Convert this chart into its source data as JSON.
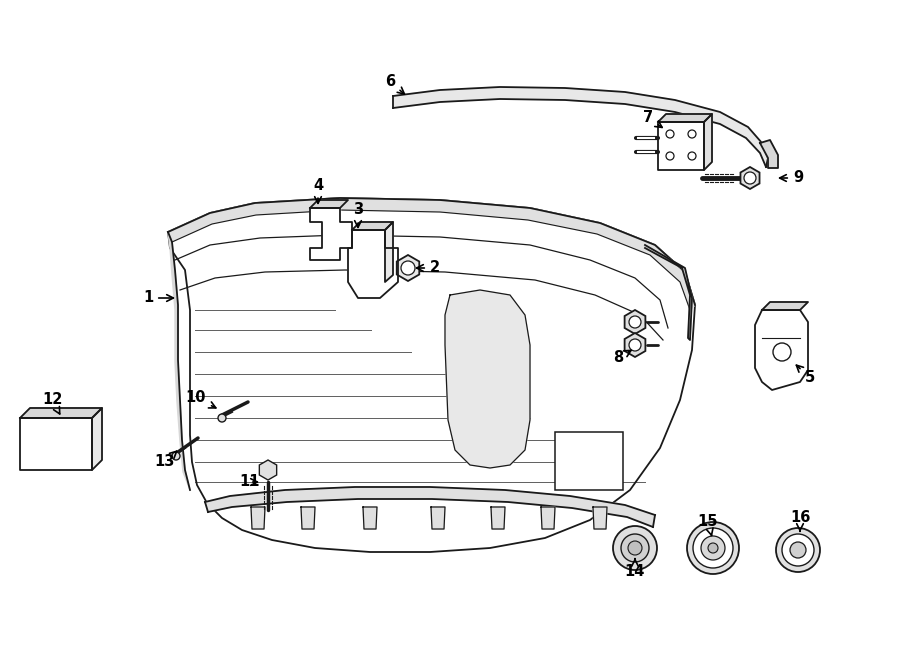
{
  "background_color": "#ffffff",
  "line_color": "#1a1a1a",
  "parts_labels": {
    "1": [
      148,
      298,
      178,
      298
    ],
    "2": [
      435,
      268,
      412,
      268
    ],
    "3": [
      358,
      210,
      358,
      232
    ],
    "4": [
      318,
      185,
      318,
      208
    ],
    "5": [
      810,
      378,
      793,
      362
    ],
    "6": [
      390,
      82,
      408,
      97
    ],
    "7": [
      648,
      118,
      666,
      130
    ],
    "8": [
      618,
      358,
      635,
      348
    ],
    "9": [
      798,
      178,
      775,
      178
    ],
    "10": [
      196,
      398,
      220,
      410
    ],
    "11": [
      250,
      482,
      262,
      482
    ],
    "12": [
      52,
      400,
      62,
      418
    ],
    "13": [
      165,
      462,
      178,
      450
    ],
    "14": [
      635,
      572,
      635,
      555
    ],
    "15": [
      708,
      522,
      712,
      537
    ],
    "16": [
      800,
      518,
      800,
      535
    ]
  }
}
